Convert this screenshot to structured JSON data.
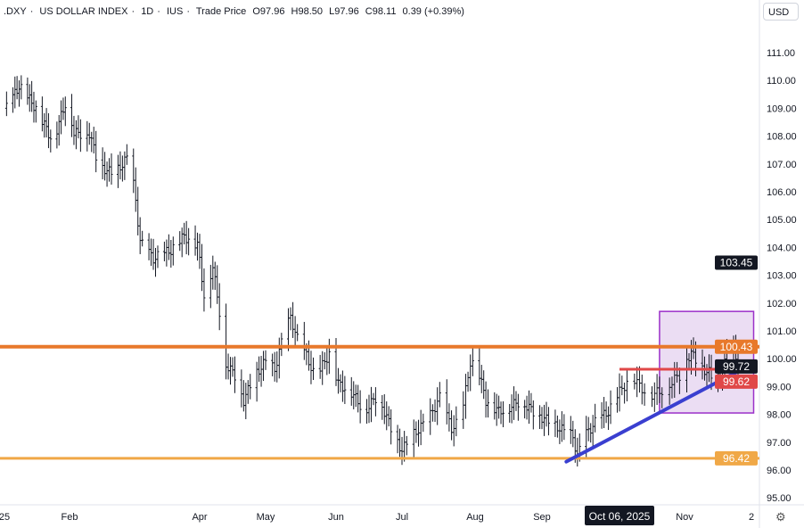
{
  "legend": {
    "symbol": ".DXY",
    "name": "US DOLLAR INDEX",
    "interval": "1D",
    "exchange": "IUS",
    "price_type": "Trade Price",
    "open": "O97.96",
    "high": "H98.50",
    "low": "L97.96",
    "close": "C98.11",
    "change": "0.39 (+0.39%)"
  },
  "currency_button": "USD",
  "settings_icon": "gear-icon",
  "chart_data": {
    "type": "ohlc",
    "ylim": [
      94.8,
      112.6
    ],
    "y_ticks": [
      "111.00",
      "110.00",
      "109.00",
      "108.00",
      "107.00",
      "106.00",
      "105.00",
      "104.00",
      "103.00",
      "102.00",
      "101.00",
      "100.00",
      "99.00",
      "98.00",
      "97.00",
      "96.00",
      "95.00"
    ],
    "x_ticks": [
      {
        "label": "25",
        "date": "2025-01-01"
      },
      {
        "label": "Feb",
        "date": "2025-02-01"
      },
      {
        "label": "Apr",
        "date": "2025-04-01"
      },
      {
        "label": "May",
        "date": "2025-05-01"
      },
      {
        "label": "Jun",
        "date": "2025-06-01"
      },
      {
        "label": "Jul",
        "date": "2025-07-01"
      },
      {
        "label": "Aug",
        "date": "2025-08-01"
      },
      {
        "label": "Sep",
        "date": "2025-09-01"
      },
      {
        "label": "Nov",
        "date": "2025-11-01"
      },
      {
        "label": "2",
        "date": "2025-12-01"
      }
    ],
    "crosshair_date_label": "Oct 06, 2025",
    "crosshair_date": "2025-10-06",
    "closes": [
      [
        "2025-01-02",
        109.0
      ],
      [
        "2025-01-08",
        109.8
      ],
      [
        "2025-01-16",
        109.0
      ],
      [
        "2025-01-24",
        107.8
      ],
      [
        "2025-01-31",
        109.4
      ],
      [
        "2025-02-03",
        108.1
      ],
      [
        "2025-02-10",
        108.1
      ],
      [
        "2025-02-14",
        107.0
      ],
      [
        "2025-02-21",
        106.6
      ],
      [
        "2025-02-28",
        107.3
      ],
      [
        "2025-03-03",
        105.7
      ],
      [
        "2025-03-05",
        104.2
      ],
      [
        "2025-03-11",
        103.6
      ],
      [
        "2025-03-19",
        103.9
      ],
      [
        "2025-03-25",
        104.4
      ],
      [
        "2025-03-31",
        104.1
      ],
      [
        "2025-04-03",
        102.3
      ],
      [
        "2025-04-07",
        103.3
      ],
      [
        "2025-04-10",
        101.7
      ],
      [
        "2025-04-13",
        99.8
      ],
      [
        "2025-04-17",
        99.4
      ],
      [
        "2025-04-21",
        98.5
      ],
      [
        "2025-04-26",
        99.4
      ],
      [
        "2025-05-01",
        99.9
      ],
      [
        "2025-05-05",
        99.6
      ],
      [
        "2025-05-09",
        100.9
      ],
      [
        "2025-05-12",
        101.5
      ],
      [
        "2025-05-15",
        100.7
      ],
      [
        "2025-05-19",
        100.1
      ],
      [
        "2025-05-23",
        99.3
      ],
      [
        "2025-05-29",
        100.2
      ],
      [
        "2025-06-02",
        99.1
      ],
      [
        "2025-06-08",
        98.8
      ],
      [
        "2025-06-14",
        98.1
      ],
      [
        "2025-06-20",
        98.7
      ],
      [
        "2025-06-26",
        97.5
      ],
      [
        "2025-07-01",
        96.7
      ],
      [
        "2025-07-06",
        97.3
      ],
      [
        "2025-07-12",
        97.8
      ],
      [
        "2025-07-17",
        98.6
      ],
      [
        "2025-07-22",
        97.5
      ],
      [
        "2025-07-26",
        97.8
      ],
      [
        "2025-07-30",
        99.9
      ],
      [
        "2025-08-02",
        99.7
      ],
      [
        "2025-08-06",
        98.5
      ],
      [
        "2025-08-12",
        98.1
      ],
      [
        "2025-08-18",
        98.3
      ],
      [
        "2025-08-22",
        98.5
      ],
      [
        "2025-08-28",
        98.1
      ],
      [
        "2025-09-03",
        97.8
      ],
      [
        "2025-09-09",
        97.5
      ],
      [
        "2025-09-15",
        97.2
      ],
      [
        "2025-09-17",
        96.5
      ],
      [
        "2025-09-21",
        97.3
      ],
      [
        "2025-09-26",
        97.8
      ],
      [
        "2025-10-01",
        98.1
      ],
      [
        "2025-10-06",
        98.8
      ],
      [
        "2025-10-11",
        99.4
      ],
      [
        "2025-10-14",
        99.0
      ],
      [
        "2025-10-18",
        98.7
      ],
      [
        "2025-10-22",
        98.8
      ],
      [
        "2025-10-26",
        99.1
      ],
      [
        "2025-10-30",
        99.4
      ],
      [
        "2025-11-01",
        99.9
      ],
      [
        "2025-11-04",
        100.2
      ],
      [
        "2025-11-08",
        99.7
      ],
      [
        "2025-11-12",
        99.5
      ],
      [
        "2025-11-14",
        99.1
      ],
      [
        "2025-11-17",
        99.4
      ],
      [
        "2025-11-20",
        100.1
      ],
      [
        "2025-11-23",
        100.2
      ],
      [
        "2025-11-25",
        99.7
      ]
    ],
    "horizontal_lines": [
      {
        "price": 100.43,
        "label": "100.43",
        "color": "#e8792b"
      },
      {
        "price": 96.42,
        "label": "96.42",
        "color": "#f0a847"
      }
    ],
    "segment_line": {
      "price": 99.62,
      "label": "99.62",
      "color": "#e04848",
      "from": "2025-10-06",
      "to": "2025-12-03"
    },
    "trend_line": {
      "color": "#3a3fd0",
      "from": [
        "2025-09-12",
        96.3
      ],
      "to": [
        "2025-12-01",
        99.8
      ]
    },
    "rectangle": {
      "color": "#9b30c9",
      "fill": "#e6d4f0",
      "from": [
        "2025-10-22",
        101.7
      ],
      "to": [
        "2025-12-02",
        98.05
      ]
    },
    "price_labels": [
      {
        "label": "103.45",
        "price": 103.45,
        "color": "#131722"
      },
      {
        "label": "99.72",
        "price": 99.72,
        "color": "#131722"
      }
    ]
  }
}
